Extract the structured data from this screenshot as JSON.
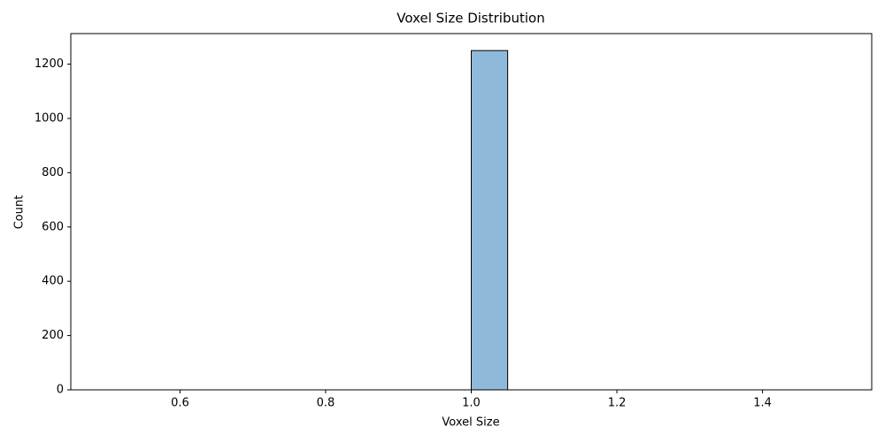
{
  "chart_data": {
    "type": "histogram",
    "title": "Voxel Size Distribution",
    "x_label": "Voxel Size",
    "y_label": "Count",
    "bins": [
      0.5,
      0.55,
      0.6,
      0.65,
      0.7,
      0.75,
      0.8,
      0.85,
      0.9,
      0.95,
      1.0,
      1.05,
      1.1,
      1.15,
      1.2,
      1.25,
      1.3,
      1.35,
      1.4,
      1.45,
      1.5
    ],
    "values": [
      0,
      0,
      0,
      0,
      0,
      0,
      0,
      0,
      0,
      0,
      1250,
      0,
      0,
      0,
      0,
      0,
      0,
      0,
      0,
      0
    ],
    "color": "#8fb9da",
    "edgecolor": "#000000",
    "xlim": [
      0.45,
      1.55
    ],
    "ylim": [
      0,
      1312.5
    ],
    "xticks": [
      0.6,
      0.8,
      {
        "value": 1.0,
        "label": "1.0"
      },
      1.2,
      1.4
    ],
    "yticks": [
      0,
      200,
      400,
      600,
      800,
      1000,
      1200
    ],
    "grid": false
  }
}
